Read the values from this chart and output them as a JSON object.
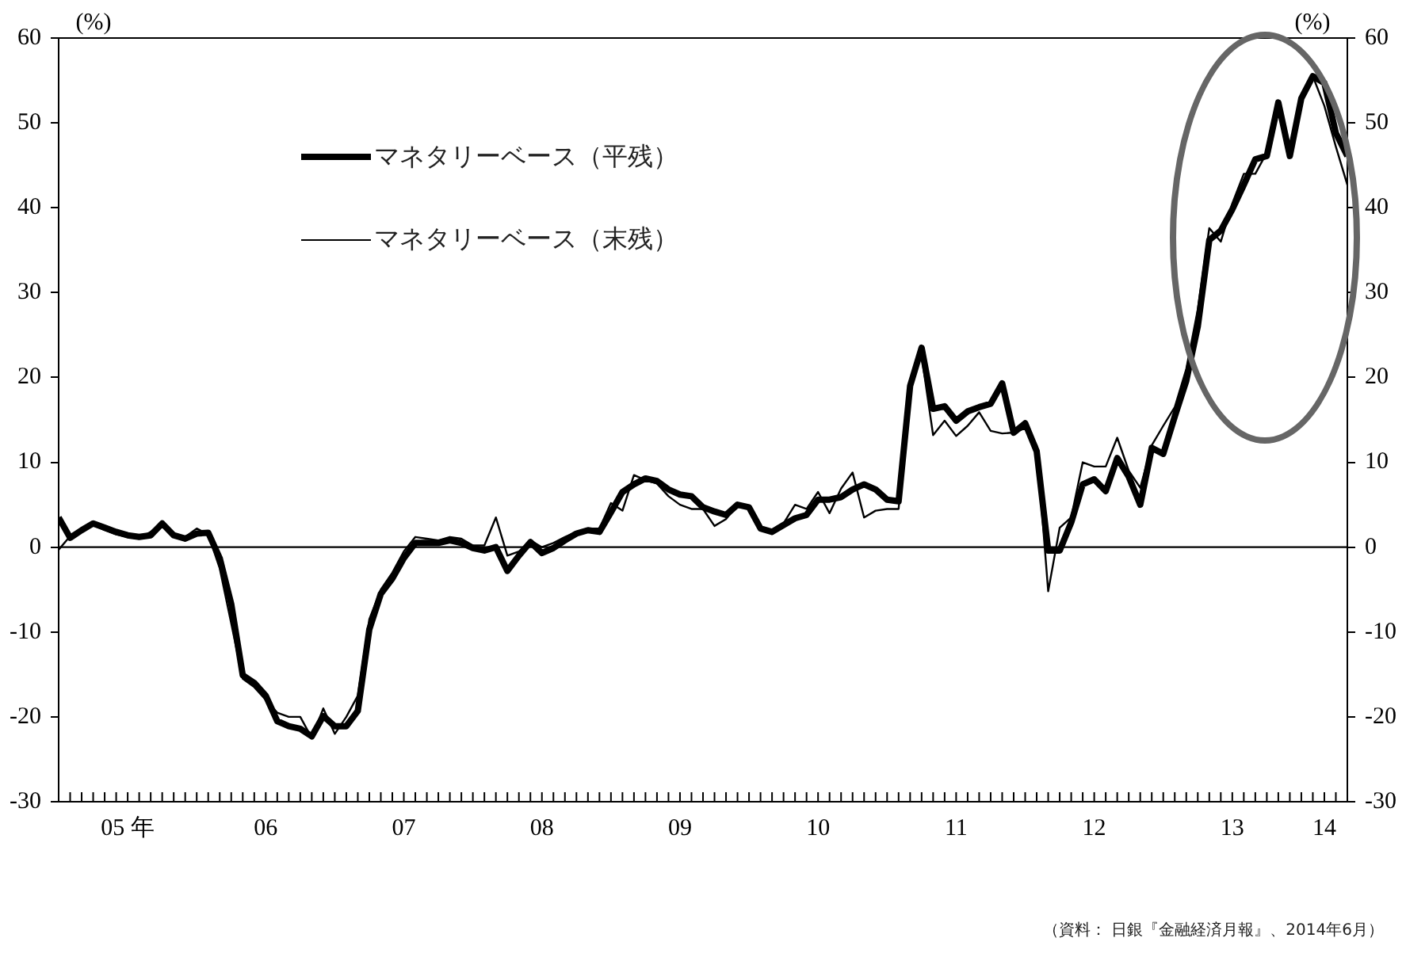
{
  "chart_data": {
    "type": "line",
    "ylabel": "(%)",
    "y2label": "(%)",
    "x": [
      "2005-01",
      "2005-02",
      "2005-03",
      "2005-04",
      "2005-05",
      "2005-06",
      "2005-07",
      "2005-08",
      "2005-09",
      "2005-10",
      "2005-11",
      "2005-12",
      "2006-01",
      "2006-02",
      "2006-03",
      "2006-04",
      "2006-05",
      "2006-06",
      "2006-07",
      "2006-08",
      "2006-09",
      "2006-10",
      "2006-11",
      "2006-12",
      "2007-01",
      "2007-02",
      "2007-03",
      "2007-04",
      "2007-05",
      "2007-06",
      "2007-07",
      "2007-08",
      "2007-09",
      "2007-10",
      "2007-11",
      "2007-12",
      "2008-01",
      "2008-02",
      "2008-03",
      "2008-04",
      "2008-05",
      "2008-06",
      "2008-07",
      "2008-08",
      "2008-09",
      "2008-10",
      "2008-11",
      "2008-12",
      "2009-01",
      "2009-02",
      "2009-03",
      "2009-04",
      "2009-05",
      "2009-06",
      "2009-07",
      "2009-08",
      "2009-09",
      "2009-10",
      "2009-11",
      "2009-12",
      "2010-01",
      "2010-02",
      "2010-03",
      "2010-04",
      "2010-05",
      "2010-06",
      "2010-07",
      "2010-08",
      "2010-09",
      "2010-10",
      "2010-11",
      "2010-12",
      "2011-01",
      "2011-02",
      "2011-03",
      "2011-04",
      "2011-05",
      "2011-06",
      "2011-07",
      "2011-08",
      "2011-09",
      "2011-10",
      "2011-11",
      "2011-12",
      "2012-01",
      "2012-02",
      "2012-03",
      "2012-04",
      "2012-05",
      "2012-06",
      "2012-07",
      "2012-08",
      "2012-09",
      "2012-10",
      "2012-11",
      "2012-12",
      "2013-01",
      "2013-02",
      "2013-03",
      "2013-04",
      "2013-05",
      "2013-06",
      "2013-07",
      "2013-08",
      "2013-09",
      "2013-10",
      "2013-11",
      "2013-12",
      "2014-01",
      "2014-02",
      "2014-03",
      "2014-04",
      "2014-05"
    ],
    "series": [
      {
        "name": "マネタリーベース（平残）",
        "color": "#000000",
        "values": [
          3.5,
          1.1,
          2.0,
          2.8,
          2.3,
          1.8,
          1.4,
          1.2,
          1.4,
          2.8,
          1.4,
          1.0,
          1.6,
          1.7,
          -1.3,
          -6.7,
          -15.1,
          -16,
          -17.5,
          -20.5,
          -21.1,
          -21.4,
          -22.3,
          -19.9,
          -21.1,
          -21.1,
          -19.3,
          -9.7,
          -5.5,
          -3.7,
          -1.3,
          0.5,
          0.5,
          0.5,
          0.8,
          0.5,
          -0.1,
          -0.4,
          0,
          -2.8,
          -1.0,
          0.6,
          -0.7,
          -0.1,
          0.8,
          1.6,
          2.0,
          1.8,
          4.1,
          6.5,
          7.4,
          8.1,
          7.8,
          6.8,
          6.2,
          6.0,
          4.7,
          4.2,
          3.8,
          5.0,
          4.7,
          2.2,
          1.8,
          2.6,
          3.4,
          3.8,
          5.6,
          5.6,
          5.9,
          6.8,
          7.4,
          6.8,
          5.6,
          5.4,
          19.0,
          23.5,
          16.3,
          16.6,
          14.9,
          16.0,
          16.5,
          16.9,
          19.3,
          13.5,
          14.6,
          11.3,
          -0.4,
          -0.4,
          2.9,
          7.4,
          8.0,
          6.6,
          10.5,
          8.3,
          5.0,
          11.7,
          11.0,
          15.4,
          19.6,
          26.0,
          36.2,
          37.3,
          39.8,
          42.7,
          45.7,
          46.1,
          52.4,
          46.1,
          52.9,
          55.5,
          54.7,
          48.8,
          46.1
        ]
      },
      {
        "name": "マネタリーベース（末残）",
        "color": "#000000",
        "values": [
          -0.3,
          1.3,
          2.2,
          2.6,
          2.0,
          1.5,
          1.2,
          1.0,
          1.8,
          3.0,
          1.5,
          1.2,
          2.2,
          1.5,
          -2.5,
          -9.0,
          -15.5,
          -16.5,
          -18.0,
          -19.5,
          -20.0,
          -20.0,
          -22.5,
          -19.0,
          -22.0,
          -20.0,
          -17.5,
          -8.5,
          -5.0,
          -3.0,
          -0.5,
          1.2,
          1.0,
          0.8,
          1.2,
          1.0,
          0.2,
          0.2,
          3.5,
          -1.0,
          -0.5,
          0.8,
          0,
          0.5,
          1.2,
          1.8,
          2.2,
          2.2,
          5.2,
          4.3,
          8.5,
          7.9,
          7.5,
          6.0,
          5.0,
          4.5,
          4.5,
          2.5,
          3.3,
          5.0,
          4.5,
          2.0,
          2.0,
          2.8,
          5.0,
          4.5,
          6.5,
          4.0,
          6.9,
          8.8,
          3.5,
          4.3,
          4.5,
          4.5,
          19.5,
          22.5,
          13.2,
          14.9,
          13.1,
          14.3,
          15.9,
          13.7,
          13.4,
          13.5,
          14.0,
          12.0,
          -5.2,
          2.3,
          3.5,
          10.0,
          9.5,
          9.5,
          12.9,
          9.0,
          7.0,
          12.0,
          14.3,
          16.5,
          21.0,
          28.0,
          37.6,
          36.0,
          40.5,
          44.0,
          44.0,
          46.5,
          52.0,
          47.0,
          52.5,
          55.5,
          52.0,
          47.2,
          42.7
        ]
      }
    ],
    "xlim": [
      "2005-01",
      "2014-05"
    ],
    "xticks": [
      {
        "value": "2006-01",
        "label": null
      },
      {
        "value": "2007-01",
        "label": null
      },
      {
        "value": "2008-01",
        "label": null
      },
      {
        "value": "2009-01",
        "label": null
      },
      {
        "value": "2010-01",
        "label": null
      },
      {
        "value": "2011-01",
        "label": null
      },
      {
        "value": "2012-01",
        "label": null
      },
      {
        "value": "2013-01",
        "label": null
      },
      {
        "value": "2014-01",
        "label": null
      },
      {
        "value": "2005-07",
        "label": "05 年"
      },
      {
        "value": "2006-07",
        "label": "06"
      },
      {
        "value": "2007-07",
        "label": "07"
      },
      {
        "value": "2008-07",
        "label": "08"
      },
      {
        "value": "2009-07",
        "label": "09"
      },
      {
        "value": "2010-07",
        "label": "10"
      },
      {
        "value": "2011-07",
        "label": "11"
      },
      {
        "value": "2012-07",
        "label": "12"
      },
      {
        "value": "2013-07",
        "label": "13"
      },
      {
        "value": "2014-03",
        "label": "14"
      }
    ],
    "ylim": [
      -30,
      60
    ],
    "yticks": [
      -30,
      -20,
      -10,
      0,
      10,
      20,
      30,
      40,
      50,
      60
    ],
    "y2lim": [
      -30,
      60
    ],
    "y2ticks": [
      -30,
      -20,
      -10,
      0,
      10,
      20,
      30,
      40,
      50,
      60
    ],
    "ref_lines": [
      {
        "axis": "y",
        "value": 0,
        "color": "#000000"
      }
    ],
    "grid": false,
    "legend": "top left",
    "marker": "none",
    "line_style": "solid",
    "annotations": [
      "（資料： 日銀『金融経済月報』、2014年6月）"
    ]
  }
}
